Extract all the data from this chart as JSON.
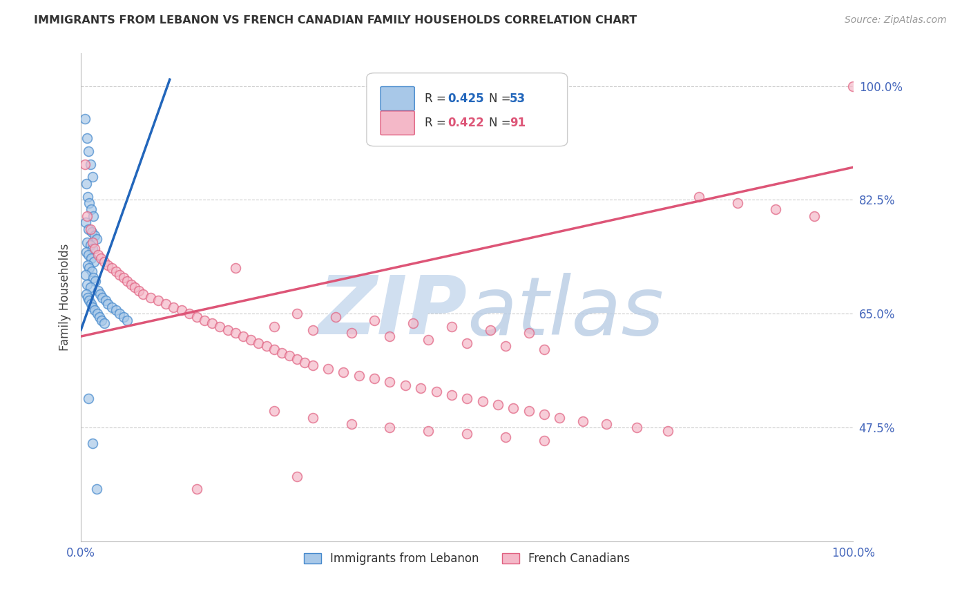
{
  "title": "IMMIGRANTS FROM LEBANON VS FRENCH CANADIAN FAMILY HOUSEHOLDS CORRELATION CHART",
  "source": "Source: ZipAtlas.com",
  "ylabel": "Family Households",
  "watermark": "ZIPatlas",
  "x_tick_labels": [
    "0.0%",
    "100.0%"
  ],
  "y_tick_labels": [
    "100.0%",
    "82.5%",
    "65.0%",
    "47.5%"
  ],
  "y_tick_values": [
    1.0,
    0.825,
    0.65,
    0.475
  ],
  "xmin": 0.0,
  "xmax": 1.0,
  "ymin": 0.3,
  "ymax": 1.05,
  "blue_color": "#a8c8e8",
  "pink_color": "#f4b8c8",
  "blue_edge_color": "#4488cc",
  "pink_edge_color": "#e06080",
  "blue_line_color": "#2266bb",
  "pink_line_color": "#dd5577",
  "title_color": "#333333",
  "source_color": "#999999",
  "tick_label_color": "#4466bb",
  "grid_color": "#cccccc",
  "watermark_color": "#d0dff0",
  "blue_scatter_x": [
    0.005,
    0.008,
    0.01,
    0.012,
    0.015,
    0.007,
    0.009,
    0.011,
    0.013,
    0.016,
    0.006,
    0.01,
    0.014,
    0.018,
    0.02,
    0.008,
    0.012,
    0.015,
    0.007,
    0.01,
    0.013,
    0.017,
    0.009,
    0.011,
    0.014,
    0.006,
    0.016,
    0.019,
    0.008,
    0.012,
    0.022,
    0.025,
    0.028,
    0.032,
    0.035,
    0.04,
    0.045,
    0.05,
    0.055,
    0.06,
    0.007,
    0.009,
    0.011,
    0.013,
    0.015,
    0.018,
    0.021,
    0.024,
    0.027,
    0.03,
    0.01,
    0.015,
    0.02
  ],
  "blue_scatter_y": [
    0.95,
    0.92,
    0.9,
    0.88,
    0.86,
    0.85,
    0.83,
    0.82,
    0.81,
    0.8,
    0.79,
    0.78,
    0.775,
    0.77,
    0.765,
    0.76,
    0.755,
    0.75,
    0.745,
    0.74,
    0.735,
    0.73,
    0.725,
    0.72,
    0.715,
    0.71,
    0.705,
    0.7,
    0.695,
    0.69,
    0.685,
    0.68,
    0.675,
    0.67,
    0.665,
    0.66,
    0.655,
    0.65,
    0.645,
    0.64,
    0.68,
    0.675,
    0.67,
    0.665,
    0.66,
    0.655,
    0.65,
    0.645,
    0.64,
    0.635,
    0.52,
    0.45,
    0.38
  ],
  "pink_scatter_x": [
    0.005,
    0.008,
    0.012,
    0.015,
    0.018,
    0.022,
    0.026,
    0.03,
    0.035,
    0.04,
    0.045,
    0.05,
    0.055,
    0.06,
    0.065,
    0.07,
    0.075,
    0.08,
    0.09,
    0.1,
    0.11,
    0.12,
    0.13,
    0.14,
    0.15,
    0.16,
    0.17,
    0.18,
    0.19,
    0.2,
    0.21,
    0.22,
    0.23,
    0.24,
    0.25,
    0.26,
    0.27,
    0.28,
    0.29,
    0.3,
    0.32,
    0.34,
    0.36,
    0.38,
    0.4,
    0.42,
    0.44,
    0.46,
    0.48,
    0.5,
    0.52,
    0.54,
    0.56,
    0.58,
    0.6,
    0.62,
    0.65,
    0.68,
    0.72,
    0.76,
    0.8,
    0.85,
    0.9,
    0.95,
    1.0,
    0.25,
    0.3,
    0.35,
    0.4,
    0.45,
    0.5,
    0.55,
    0.6,
    0.28,
    0.33,
    0.38,
    0.43,
    0.48,
    0.53,
    0.58,
    0.2,
    0.25,
    0.3,
    0.15,
    0.35,
    0.4,
    0.45,
    0.5,
    0.55,
    0.6,
    0.28
  ],
  "pink_scatter_y": [
    0.88,
    0.8,
    0.78,
    0.76,
    0.75,
    0.74,
    0.735,
    0.73,
    0.725,
    0.72,
    0.715,
    0.71,
    0.705,
    0.7,
    0.695,
    0.69,
    0.685,
    0.68,
    0.675,
    0.67,
    0.665,
    0.66,
    0.655,
    0.65,
    0.645,
    0.64,
    0.635,
    0.63,
    0.625,
    0.62,
    0.615,
    0.61,
    0.605,
    0.6,
    0.595,
    0.59,
    0.585,
    0.58,
    0.575,
    0.57,
    0.565,
    0.56,
    0.555,
    0.55,
    0.545,
    0.54,
    0.535,
    0.53,
    0.525,
    0.52,
    0.515,
    0.51,
    0.505,
    0.5,
    0.495,
    0.49,
    0.485,
    0.48,
    0.475,
    0.47,
    0.83,
    0.82,
    0.81,
    0.8,
    1.0,
    0.63,
    0.625,
    0.62,
    0.615,
    0.61,
    0.605,
    0.6,
    0.595,
    0.65,
    0.645,
    0.64,
    0.635,
    0.63,
    0.625,
    0.62,
    0.72,
    0.5,
    0.49,
    0.38,
    0.48,
    0.475,
    0.47,
    0.465,
    0.46,
    0.455,
    0.4
  ],
  "blue_line_x": [
    0.0,
    0.115
  ],
  "blue_line_y": [
    0.625,
    1.01
  ],
  "pink_line_x": [
    0.0,
    1.0
  ],
  "pink_line_y": [
    0.615,
    0.875
  ],
  "legend_blue_R": "0.425",
  "legend_blue_N": "53",
  "legend_pink_R": "0.422",
  "legend_pink_N": "91",
  "legend_label_blue": "Immigrants from Lebanon",
  "legend_label_pink": "French Canadians"
}
